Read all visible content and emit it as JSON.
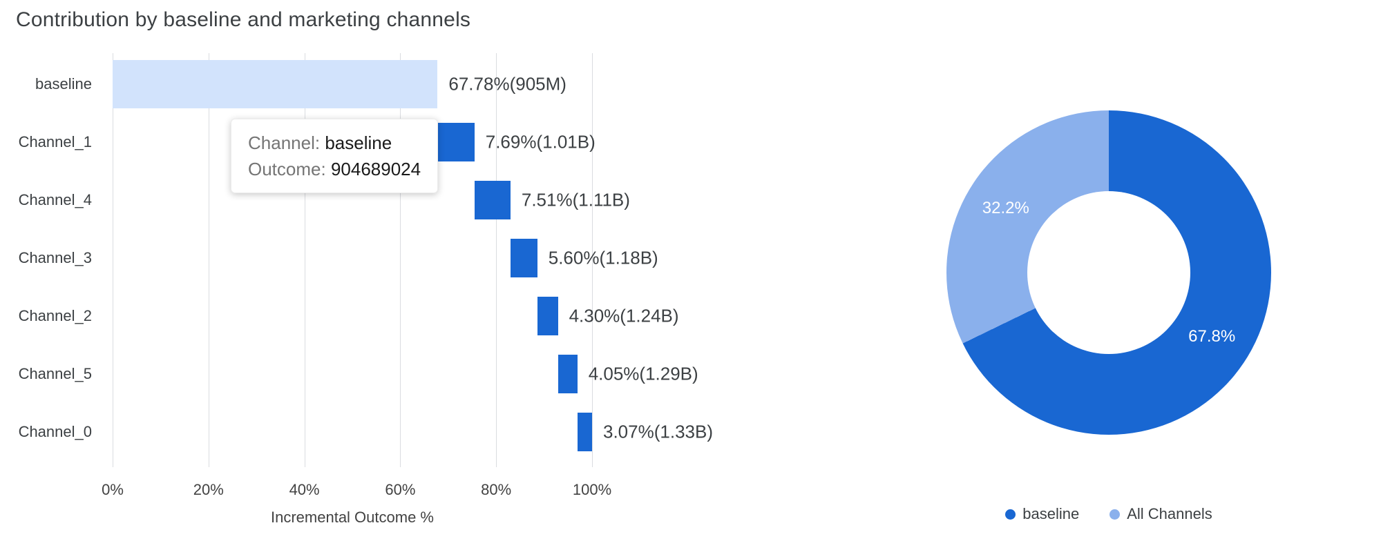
{
  "title": "Contribution by baseline and marketing channels",
  "colors": {
    "primary": "#1967D2",
    "baseline_light": "#D2E3FC",
    "donut_light": "#8AB0EC",
    "grid": "#DADCE0",
    "text_dark": "#3C4043",
    "text_gray": "#757575"
  },
  "tooltip": {
    "channel_label": "Channel:",
    "channel_value": "baseline",
    "outcome_label": "Outcome:",
    "outcome_value": "904689024"
  },
  "chart_data": [
    {
      "type": "bar",
      "subtype": "horizontal-waterfall",
      "title": "Contribution by baseline and marketing channels",
      "xlabel": "Incremental Outcome %",
      "xlim": [
        0,
        100
      ],
      "x_ticks": [
        "0%",
        "20%",
        "40%",
        "60%",
        "80%",
        "100%"
      ],
      "grid": true,
      "categories": [
        "baseline",
        "Channel_1",
        "Channel_4",
        "Channel_3",
        "Channel_2",
        "Channel_5",
        "Channel_0"
      ],
      "values": [
        67.78,
        7.69,
        7.51,
        5.6,
        4.3,
        4.05,
        3.07
      ],
      "labels": [
        "67.78%(905M)",
        "7.69%(1.01B)",
        "7.51%(1.11B)",
        "5.60%(1.18B)",
        "4.30%(1.24B)",
        "4.05%(1.29B)",
        "3.07%(1.33B)"
      ]
    },
    {
      "type": "pie",
      "subtype": "donut",
      "legend_position": "bottom",
      "slices": [
        {
          "label": "baseline",
          "value": 67.8,
          "display": "67.8%",
          "color_key": "primary"
        },
        {
          "label": "All Channels",
          "value": 32.2,
          "display": "32.2%",
          "color_key": "donut_light"
        }
      ]
    }
  ]
}
